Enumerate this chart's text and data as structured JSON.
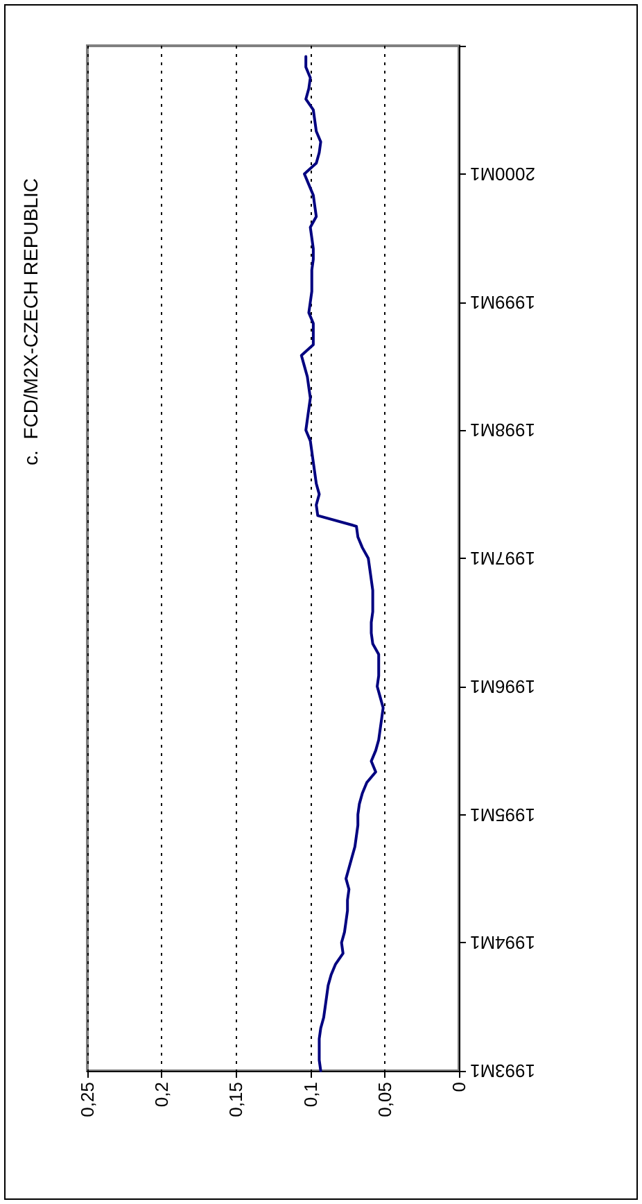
{
  "chart_data": {
    "type": "line",
    "title": "c.  FCD/M2X-CZECH REPUBLIC",
    "orientation": "horizontal",
    "categories": [
      null,
      null,
      null,
      null,
      null,
      null,
      null,
      null,
      null,
      null,
      null,
      null,
      "2000M1",
      null,
      null,
      null,
      null,
      null,
      null,
      null,
      null,
      null,
      null,
      null,
      "1999M1",
      null,
      null,
      null,
      null,
      null,
      null,
      null,
      null,
      null,
      null,
      null,
      "1998M1",
      null,
      null,
      null,
      null,
      null,
      null,
      null,
      null,
      null,
      null,
      null,
      "1997M1",
      null,
      null,
      null,
      null,
      null,
      null,
      null,
      null,
      null,
      null,
      null,
      "1996M1",
      null,
      null,
      null,
      null,
      null,
      null,
      null,
      null,
      null,
      null,
      null,
      "1995M1",
      null,
      null,
      null,
      null,
      null,
      null,
      null,
      null,
      null,
      null,
      null,
      "1994M1",
      null,
      null,
      null,
      null,
      null,
      null,
      null,
      null,
      null,
      null,
      null,
      "1993M1"
    ],
    "series": [
      {
        "color": "#000080",
        "values": [
          null,
          0.103,
          0.103,
          0.1,
          0.101,
          0.103,
          0.098,
          0.097,
          0.096,
          0.093,
          0.094,
          0.096,
          0.104,
          0.101,
          0.098,
          0.097,
          0.096,
          0.1,
          0.099,
          0.098,
          0.098,
          0.099,
          0.099,
          0.099,
          0.1,
          0.101,
          0.098,
          0.098,
          0.098,
          0.106,
          0.104,
          0.102,
          0.101,
          0.1,
          0.101,
          0.102,
          0.103,
          0.1,
          0.099,
          0.098,
          0.097,
          0.096,
          0.094,
          0.096,
          0.095,
          0.069,
          0.068,
          0.065,
          0.061,
          0.06,
          0.059,
          0.058,
          0.058,
          0.058,
          0.059,
          0.059,
          0.058,
          0.054,
          0.054,
          0.054,
          0.055,
          0.053,
          0.051,
          0.052,
          0.053,
          0.054,
          0.056,
          0.059,
          0.056,
          0.062,
          0.065,
          0.067,
          0.068,
          0.068,
          0.069,
          0.07,
          0.072,
          0.074,
          0.076,
          0.074,
          0.075,
          0.075,
          0.076,
          0.077,
          0.079,
          0.078,
          0.083,
          0.086,
          0.088,
          0.089,
          0.09,
          0.091,
          0.093,
          0.094,
          0.094,
          0.094,
          0.093
        ]
      }
    ],
    "xlim": [
      0.25,
      0
    ],
    "xticks": [
      {
        "value": 0.25,
        "label": "0,25"
      },
      {
        "value": 0.2,
        "label": "0,2"
      },
      {
        "value": 0.15,
        "label": "0,15"
      },
      {
        "value": 0.1,
        "label": "0,1"
      },
      {
        "value": 0.05,
        "label": "0,05"
      },
      {
        "value": 0,
        "label": "0"
      }
    ],
    "grid": "x",
    "marker": "none",
    "line_style": "solid"
  }
}
